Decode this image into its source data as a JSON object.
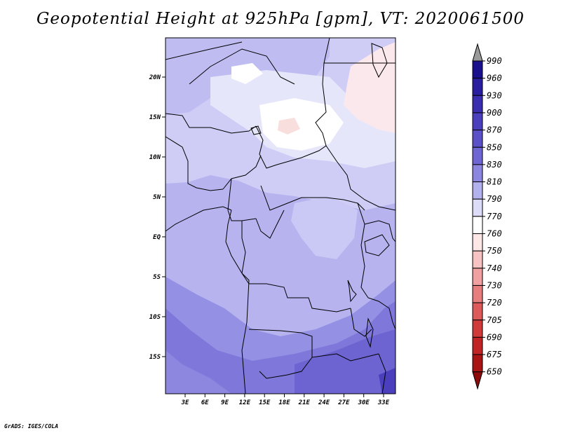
{
  "title": "Geopotential Height at 925hPa [gpm], VT: 2020061500",
  "credit": "GrADS: IGES/COLA",
  "map": {
    "lat_labels": [
      "20N",
      "15N",
      "10N",
      "5N",
      "EQ",
      "5S",
      "10S",
      "15S"
    ],
    "lon_labels": [
      "3E",
      "6E",
      "9E",
      "12E",
      "15E",
      "18E",
      "21E",
      "24E",
      "27E",
      "30E",
      "33E"
    ]
  },
  "colorbar": {
    "levels": [
      "990",
      "960",
      "930",
      "900",
      "870",
      "850",
      "830",
      "810",
      "790",
      "770",
      "760",
      "750",
      "740",
      "730",
      "720",
      "705",
      "690",
      "675",
      "650"
    ],
    "colors": [
      "#9a9a9a",
      "#1a0f8c",
      "#2a1ea0",
      "#3a2db0",
      "#4b3fbe",
      "#5b50c8",
      "#6f66d4",
      "#8c86e0",
      "#b3b0ee",
      "#dcdcf8",
      "#ffffff",
      "#fde6e6",
      "#f7c2c2",
      "#f0a0a0",
      "#e67e7e",
      "#dc5a5a",
      "#d03a3a",
      "#c02424",
      "#a81414",
      "#8c0a0a"
    ]
  }
}
